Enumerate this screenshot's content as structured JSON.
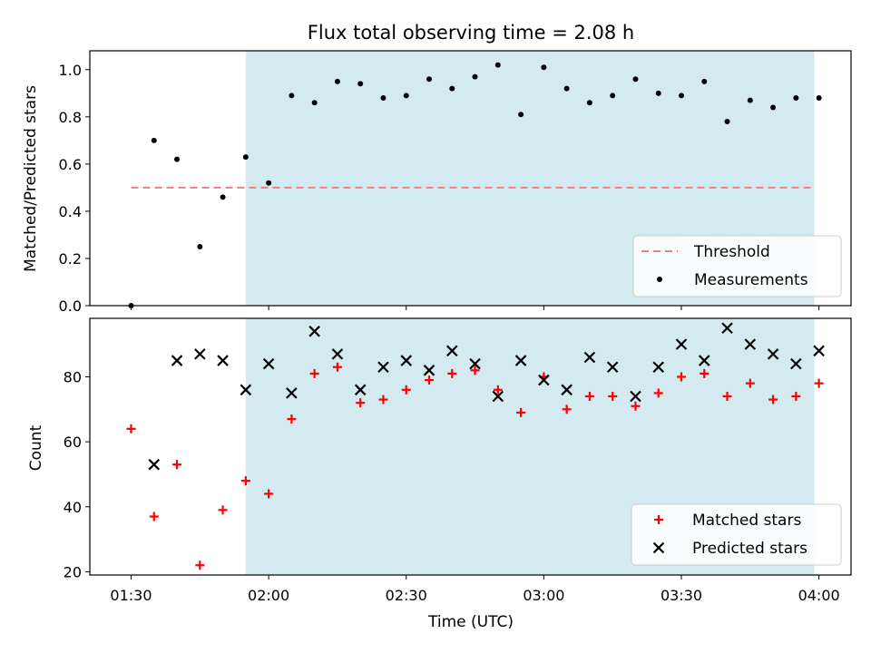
{
  "title": "Flux total observing time = 2.08 h",
  "colors": {
    "highlight_band": "#d4eaf1",
    "threshold": "#f08080",
    "measurements": "#000000",
    "matched": "#ff0000",
    "predicted": "#000000"
  },
  "chart_data": [
    {
      "type": "scatter",
      "ylabel": "Matched/Predicted stars",
      "xlim": [
        "01:21",
        "04:07"
      ],
      "ylim": [
        0,
        1.08
      ],
      "yticks": [
        "0.0",
        "0.2",
        "0.4",
        "0.6",
        "0.8",
        "1.0"
      ],
      "highlight_span": [
        "01:55",
        "03:59"
      ],
      "legend": {
        "position": "lower right",
        "entries": [
          "Threshold",
          "Measurements"
        ]
      },
      "threshold": {
        "name": "Threshold",
        "y": 0.5,
        "x_range": [
          "01:30",
          "03:59"
        ],
        "style": "dashed"
      },
      "series": [
        {
          "name": "Measurements",
          "marker": "dot",
          "x": [
            "01:30",
            "01:35",
            "01:40",
            "01:45",
            "01:50",
            "01:55",
            "02:00",
            "02:05",
            "02:10",
            "02:15",
            "02:20",
            "02:25",
            "02:30",
            "02:35",
            "02:40",
            "02:45",
            "02:50",
            "02:55",
            "03:00",
            "03:05",
            "03:10",
            "03:15",
            "03:20",
            "03:25",
            "03:30",
            "03:35",
            "03:40",
            "03:45",
            "03:50",
            "03:55",
            "04:00"
          ],
          "y": [
            0.0,
            0.7,
            0.62,
            0.25,
            0.46,
            0.63,
            0.52,
            0.89,
            0.86,
            0.95,
            0.94,
            0.88,
            0.89,
            0.96,
            0.92,
            0.97,
            1.02,
            0.81,
            1.01,
            0.92,
            0.86,
            0.89,
            0.96,
            0.9,
            0.89,
            0.95,
            0.78,
            0.87,
            0.84,
            0.88,
            0.88
          ]
        }
      ]
    },
    {
      "type": "scatter",
      "xlabel": "Time (UTC)",
      "ylabel": "Count",
      "xlim": [
        "01:21",
        "04:07"
      ],
      "ylim": [
        19,
        98
      ],
      "xticks": [
        "01:30",
        "02:00",
        "02:30",
        "03:00",
        "03:30",
        "04:00"
      ],
      "yticks": [
        "20",
        "40",
        "60",
        "80"
      ],
      "highlight_span": [
        "01:55",
        "03:59"
      ],
      "legend": {
        "position": "lower right",
        "entries": [
          "Matched stars",
          "Predicted stars"
        ]
      },
      "series": [
        {
          "name": "Matched stars",
          "marker": "plus",
          "x": [
            "01:30",
            "01:35",
            "01:40",
            "01:45",
            "01:50",
            "01:55",
            "02:00",
            "02:05",
            "02:10",
            "02:15",
            "02:20",
            "02:25",
            "02:30",
            "02:35",
            "02:40",
            "02:45",
            "02:50",
            "02:55",
            "03:00",
            "03:05",
            "03:10",
            "03:15",
            "03:20",
            "03:25",
            "03:30",
            "03:35",
            "03:40",
            "03:45",
            "03:50",
            "03:55",
            "04:00"
          ],
          "y": [
            64,
            37,
            53,
            22,
            39,
            48,
            44,
            67,
            81,
            83,
            72,
            73,
            76,
            79,
            81,
            82,
            76,
            69,
            80,
            70,
            74,
            74,
            71,
            75,
            80,
            81,
            74,
            78,
            73,
            74,
            78
          ]
        },
        {
          "name": "Predicted stars",
          "marker": "x",
          "x": [
            "01:35",
            "01:40",
            "01:45",
            "01:50",
            "01:55",
            "02:00",
            "02:05",
            "02:10",
            "02:15",
            "02:20",
            "02:25",
            "02:30",
            "02:35",
            "02:40",
            "02:45",
            "02:50",
            "02:55",
            "03:00",
            "03:05",
            "03:10",
            "03:15",
            "03:20",
            "03:25",
            "03:30",
            "03:35",
            "03:40",
            "03:45",
            "03:50",
            "03:55",
            "04:00"
          ],
          "y": [
            53,
            85,
            87,
            85,
            76,
            84,
            75,
            94,
            87,
            76,
            83,
            85,
            82,
            88,
            84,
            74,
            85,
            79,
            76,
            86,
            83,
            74,
            83,
            90,
            85,
            95,
            90,
            87,
            84,
            88
          ]
        }
      ]
    }
  ]
}
